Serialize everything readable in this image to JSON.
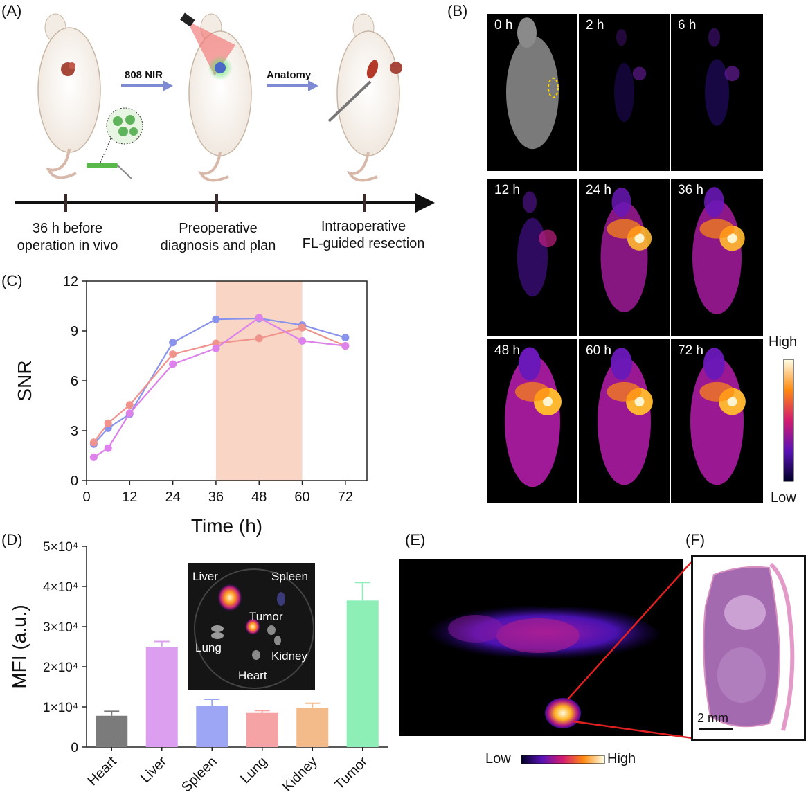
{
  "panel_labels": {
    "a": "(A)",
    "b": "(B)",
    "c": "(C)",
    "d": "(D)",
    "e": "(E)",
    "f": "(F)"
  },
  "panel_a": {
    "arrow1": "808 NIR",
    "arrow2": "Anatomy",
    "steps": [
      {
        "l1": "36 h before",
        "l2": "operation in vivo"
      },
      {
        "l1": "Preoperative",
        "l2": "diagnosis and plan"
      },
      {
        "l1": "Intraoperative",
        "l2": "FL-guided resection"
      }
    ]
  },
  "panel_b": {
    "times": [
      "0 h",
      "2 h",
      "6 h",
      "12 h",
      "24 h",
      "36 h",
      "48 h",
      "60 h",
      "72 h"
    ],
    "intensities": [
      0,
      0.15,
      0.25,
      0.4,
      0.8,
      0.85,
      1.0,
      0.95,
      0.95
    ],
    "scale_high": "High",
    "scale_low": "Low"
  },
  "panel_e": {
    "scale_low": "Low",
    "scale_high": "High"
  },
  "panel_f": {
    "scale_bar": "2 mm"
  },
  "inset_d": {
    "labels": [
      "Liver",
      "Spleen",
      "Tumor",
      "Lung",
      "Kidney",
      "Heart"
    ]
  },
  "colors": {
    "c_blue": "#8a93ec",
    "c_salmon": "#f0938d",
    "c_pink": "#dd82ea",
    "highlight": "#f8d5c4"
  },
  "chart_data": [
    {
      "type": "line",
      "xlabel": "Time (h)",
      "ylabel": "SNR",
      "xlim": [
        0,
        78
      ],
      "ylim": [
        0,
        12
      ],
      "xticks": [
        0,
        12,
        24,
        36,
        48,
        60,
        72
      ],
      "yticks": [
        0,
        3,
        6,
        9,
        12
      ],
      "highlight_x": [
        36,
        60
      ],
      "series": [
        {
          "color": "#8a93ec",
          "points": [
            [
              2,
              2.2
            ],
            [
              6,
              3.15
            ],
            [
              12,
              4.0
            ],
            [
              24,
              8.3
            ],
            [
              36,
              9.7
            ],
            [
              48,
              9.75
            ],
            [
              60,
              9.35
            ],
            [
              72,
              8.6
            ]
          ]
        },
        {
          "color": "#f0938d",
          "points": [
            [
              2,
              2.3
            ],
            [
              6,
              3.45
            ],
            [
              12,
              4.55
            ],
            [
              24,
              7.6
            ],
            [
              36,
              8.25
            ],
            [
              48,
              8.55
            ],
            [
              60,
              9.2
            ],
            [
              72,
              8.1
            ]
          ]
        },
        {
          "color": "#dd82ea",
          "points": [
            [
              2,
              1.4
            ],
            [
              6,
              1.95
            ],
            [
              12,
              4.05
            ],
            [
              24,
              7.0
            ],
            [
              36,
              7.95
            ],
            [
              48,
              9.8
            ],
            [
              60,
              8.4
            ],
            [
              72,
              8.1
            ]
          ]
        }
      ]
    },
    {
      "type": "bar",
      "ylabel": "MFI (a.u.)",
      "categories": [
        "Heart",
        "Liver",
        "Spleen",
        "Lung",
        "Kidney",
        "Tumor"
      ],
      "values": [
        7800,
        25000,
        10300,
        8500,
        9800,
        36500
      ],
      "errors": [
        1100,
        1300,
        1600,
        600,
        1100,
        4500
      ],
      "colors": [
        "#7b7b7b",
        "#dc9ff0",
        "#9da6f4",
        "#f6a3a5",
        "#f3bb8a",
        "#8eefb6"
      ],
      "ylim": [
        0,
        50000
      ],
      "ytick_labels": [
        "0",
        "1×10⁴",
        "2×10⁴",
        "3×10⁴",
        "4×10⁴",
        "5×10⁴"
      ]
    }
  ]
}
